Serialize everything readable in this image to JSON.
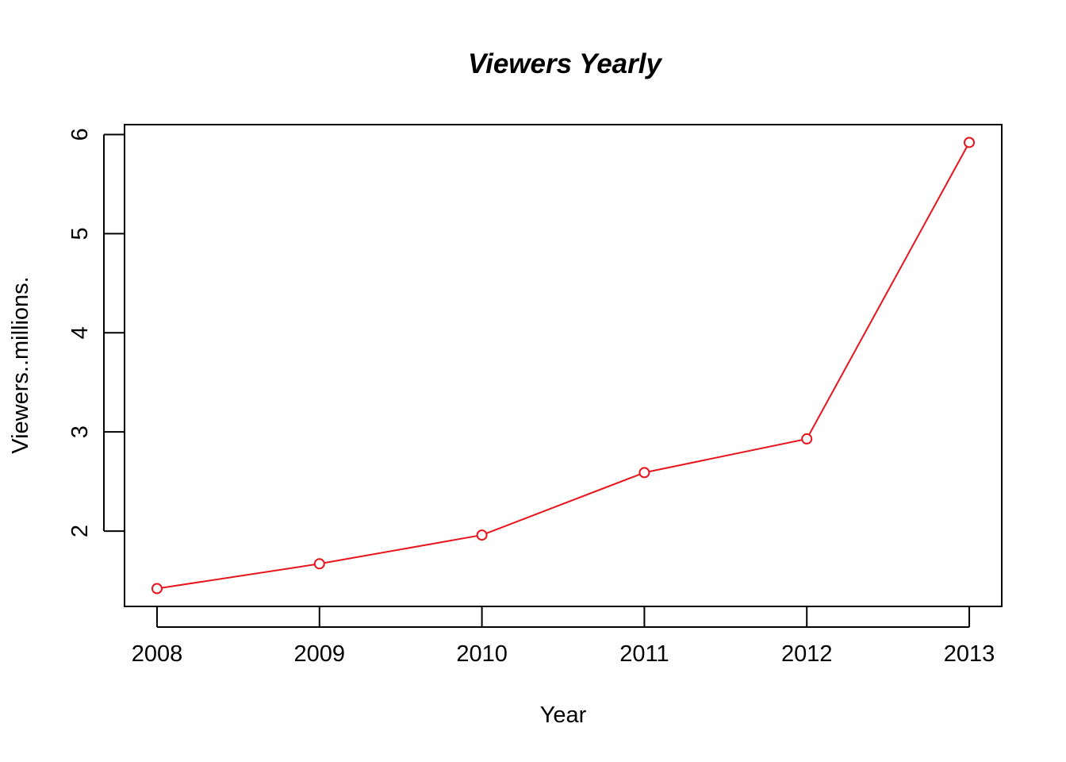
{
  "chart_data": {
    "type": "line",
    "title": "Viewers Yearly",
    "xlabel": "Year",
    "ylabel": "Viewers..millions.",
    "x": [
      2008,
      2009,
      2010,
      2011,
      2012,
      2013
    ],
    "series": [
      {
        "values": [
          1.42,
          1.67,
          1.96,
          2.59,
          2.93,
          5.92
        ],
        "color": "#e8141c",
        "marker": "open-circle"
      }
    ],
    "x_ticks": [
      "2008",
      "2009",
      "2010",
      "2011",
      "2012",
      "2013"
    ],
    "y_ticks": [
      "2",
      "3",
      "4",
      "5",
      "6"
    ],
    "xlim": [
      2007.8,
      2013.2
    ],
    "ylim": [
      1.24,
      6.1
    ],
    "grid": false,
    "legend": "none"
  }
}
